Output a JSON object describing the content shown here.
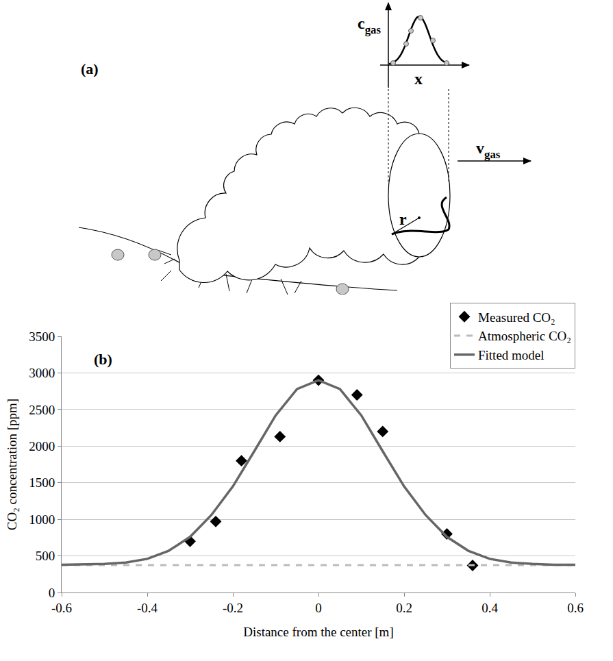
{
  "diagram": {
    "panel_label": "(a)",
    "inset_y_label": {
      "symbol": "c",
      "subscript": "gas"
    },
    "inset_x_label": "x",
    "radius_label": "r",
    "velocity_label": {
      "symbol": "v",
      "subscript": "gas"
    }
  },
  "chart_data": {
    "type": "scatter",
    "annotations": [
      "(b)"
    ],
    "x_label": "Distance from the center [m]",
    "y_label": "CO₂ concentration [ppm]",
    "xlim": [
      -0.6,
      0.6
    ],
    "xticks": [
      -0.6,
      -0.4,
      -0.2,
      0,
      0.2,
      0.4,
      0.6
    ],
    "ylim": [
      0,
      3500
    ],
    "yticks": [
      0,
      500,
      1000,
      1500,
      2000,
      2500,
      3000,
      3500
    ],
    "grid": true,
    "legend": "top right",
    "series": [
      {
        "name": "Measured CO₂",
        "type": "scatter",
        "marker": "diamond",
        "color": "#000000",
        "x": [
          -0.3,
          -0.24,
          -0.18,
          -0.09,
          0,
          0.09,
          0.15,
          0.3,
          0.36
        ],
        "values": [
          700,
          970,
          1800,
          2130,
          2900,
          2700,
          2200,
          800,
          370
        ]
      },
      {
        "name": "Atmospheric CO₂",
        "type": "line",
        "line_style": "dash",
        "color": "#bbbbbb",
        "x": [
          -0.6,
          0.6
        ],
        "values": [
          375,
          375
        ]
      },
      {
        "name": "Fitted model",
        "type": "line",
        "line_style": "solid",
        "color": "#666666",
        "x": [
          -0.6,
          -0.55,
          -0.5,
          -0.45,
          -0.4,
          -0.35,
          -0.3,
          -0.25,
          -0.2,
          -0.15,
          -0.1,
          -0.05,
          0,
          0.05,
          0.1,
          0.15,
          0.2,
          0.25,
          0.3,
          0.35,
          0.4,
          0.45,
          0.5,
          0.55,
          0.6
        ],
        "values": [
          378,
          380,
          390,
          410,
          460,
          570,
          760,
          1060,
          1450,
          1930,
          2420,
          2780,
          2900,
          2780,
          2420,
          1930,
          1450,
          1060,
          760,
          570,
          460,
          410,
          390,
          380,
          378
        ]
      }
    ]
  }
}
